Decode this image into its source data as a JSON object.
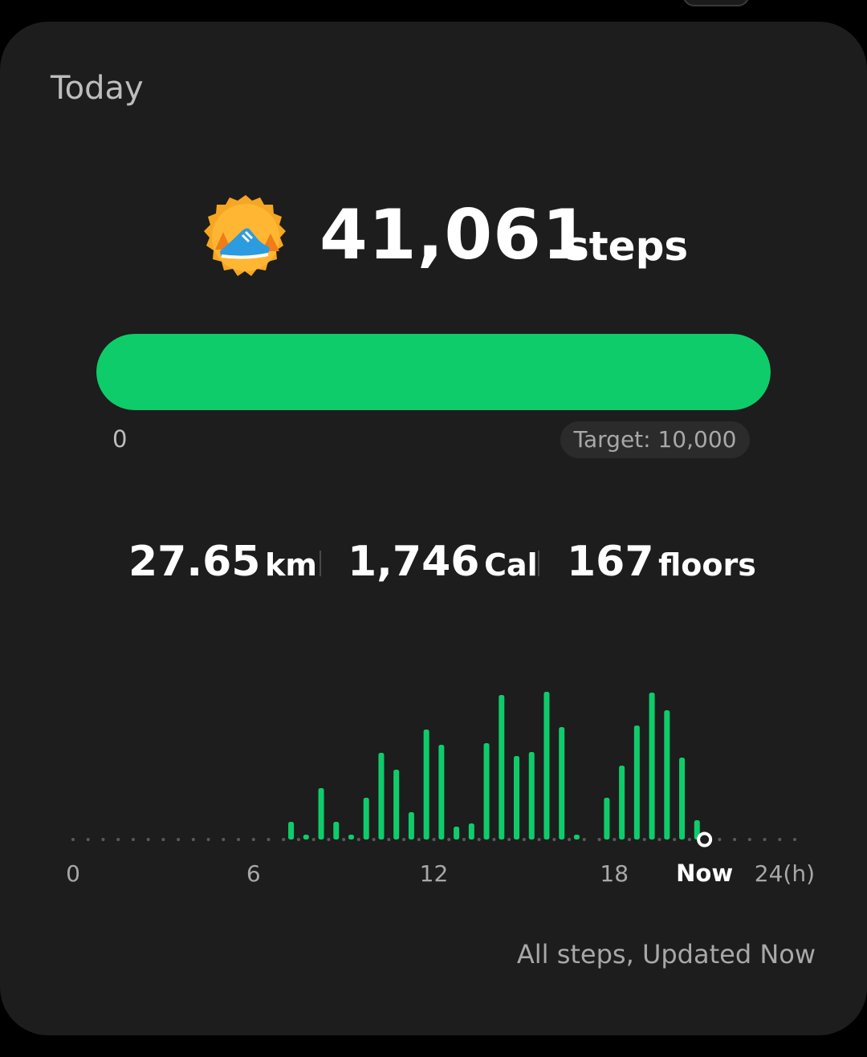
{
  "card": {
    "title": "Today"
  },
  "steps": {
    "count": "41,061",
    "unit": "steps",
    "badge_icon": "running-shoe-icon"
  },
  "progress": {
    "min_label": "0",
    "target_label": "Target: 10,000",
    "fraction": 1.0,
    "color": "#0fcc6b"
  },
  "stats": {
    "distance_value": "27.65",
    "distance_unit": "km",
    "calories_value": "1,746",
    "calories_unit": "Cal",
    "floors_value": "167",
    "floors_unit": "floors"
  },
  "chart_data": {
    "type": "bar",
    "x_unit": "hour",
    "xlim": [
      0,
      24
    ],
    "tick_labels": [
      "0",
      "6",
      "12",
      "18",
      "Now",
      "24(h)"
    ],
    "tick_values": [
      0,
      6,
      12,
      18,
      21,
      24
    ],
    "now_hour": 21,
    "ylim": [
      0,
      185
    ],
    "bars": [
      {
        "x": 7.25,
        "value": 22
      },
      {
        "x": 7.75,
        "value": 6
      },
      {
        "x": 8.25,
        "value": 64
      },
      {
        "x": 8.75,
        "value": 22
      },
      {
        "x": 9.25,
        "value": 6
      },
      {
        "x": 9.75,
        "value": 52
      },
      {
        "x": 10.25,
        "value": 108
      },
      {
        "x": 10.75,
        "value": 87
      },
      {
        "x": 11.25,
        "value": 34
      },
      {
        "x": 11.75,
        "value": 137
      },
      {
        "x": 12.25,
        "value": 118
      },
      {
        "x": 12.75,
        "value": 16
      },
      {
        "x": 13.25,
        "value": 20
      },
      {
        "x": 13.75,
        "value": 120
      },
      {
        "x": 14.25,
        "value": 180
      },
      {
        "x": 14.75,
        "value": 104
      },
      {
        "x": 15.25,
        "value": 109
      },
      {
        "x": 15.75,
        "value": 184
      },
      {
        "x": 16.25,
        "value": 140
      },
      {
        "x": 16.75,
        "value": 6
      },
      {
        "x": 17.75,
        "value": 52
      },
      {
        "x": 18.25,
        "value": 92
      },
      {
        "x": 18.75,
        "value": 142
      },
      {
        "x": 19.25,
        "value": 183
      },
      {
        "x": 19.75,
        "value": 161
      },
      {
        "x": 20.25,
        "value": 102
      },
      {
        "x": 20.75,
        "value": 24
      }
    ],
    "bar_color": "#0fcc6b",
    "grid": false
  },
  "footer": {
    "note": "All steps, Updated Now"
  }
}
